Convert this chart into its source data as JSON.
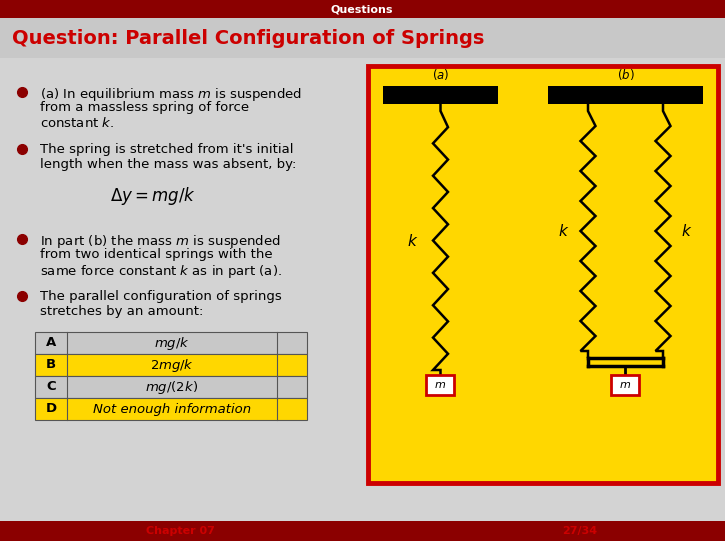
{
  "title": "Question: Parallel Configuration of Springs",
  "header": "Questions",
  "header_bg": "#8B0000",
  "header_text_color": "#ffffff",
  "title_color": "#cc0000",
  "title_bar_color": "#c8c8c8",
  "bg_color": "#d3d3d3",
  "footer_text_left": "Chapter 07",
  "footer_text_right": "27/34",
  "footer_bg": "#8B0000",
  "footer_text_color": "#cc0000",
  "bullet_color": "#8B0000",
  "diagram_bg": "#FFD700",
  "diagram_border": "#cc0000",
  "table_rows": [
    {
      "label": "A",
      "value": "$mg/k$",
      "highlight": false
    },
    {
      "label": "B",
      "value": "$2mg/k$",
      "highlight": true
    },
    {
      "label": "C",
      "value": "$mg/(2k)$",
      "highlight": false
    },
    {
      "label": "D",
      "value": "Not enough information",
      "highlight": true
    }
  ],
  "table_highlight_color": "#FFD700",
  "table_normal_color": "#c8c8c8",
  "mass_box_color": "#cc0000",
  "mass_box_border": "#cc0000",
  "spring_color": "#000000",
  "ceiling_color": "#000000"
}
